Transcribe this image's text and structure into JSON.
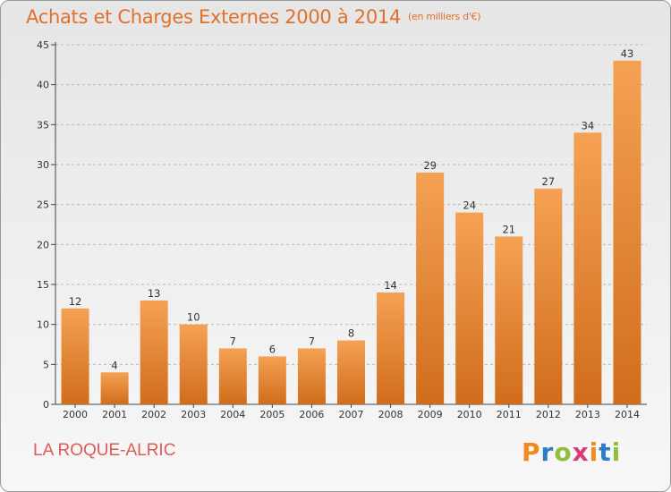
{
  "header": {
    "title": "Achats et Charges Externes 2000 à 2014",
    "subtitle": "(en milliers d'€)"
  },
  "footer": {
    "commune": "LA ROQUE-ALRIC",
    "logo": "Proxiti"
  },
  "colors": {
    "bar_top": "#f5a154",
    "bar_bottom": "#d06d1c",
    "title": "#e0702a",
    "commune": "#e05a5a",
    "logo_letters": [
      "#f08a1e",
      "#2e7dc8",
      "#8fc03b",
      "#d93a7a",
      "#f08a1e",
      "#2e7dc8",
      "#8fc03b"
    ]
  },
  "chart_data": {
    "type": "bar",
    "title": "Achats et Charges Externes 2000 à 2014",
    "subtitle": "(en milliers d'€)",
    "categories": [
      "2000",
      "2001",
      "2002",
      "2003",
      "2004",
      "2005",
      "2006",
      "2007",
      "2008",
      "2009",
      "2010",
      "2011",
      "2012",
      "2013",
      "2014"
    ],
    "values": [
      12,
      4,
      13,
      10,
      7,
      6,
      7,
      8,
      14,
      29,
      24,
      21,
      27,
      34,
      43
    ],
    "ylim": [
      0,
      45
    ],
    "yticks": [
      0,
      5,
      10,
      15,
      20,
      25,
      30,
      35,
      40,
      45
    ],
    "grid": true,
    "xlabel": "",
    "ylabel": ""
  }
}
